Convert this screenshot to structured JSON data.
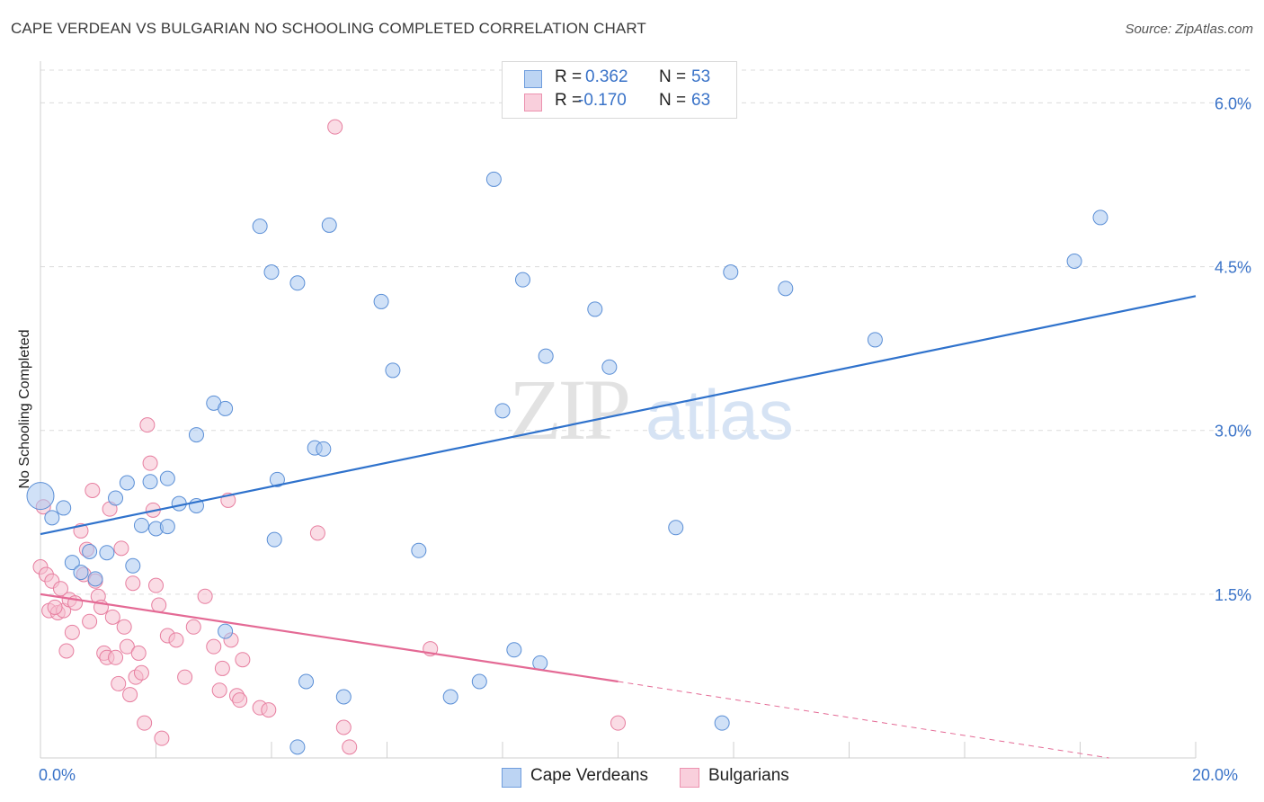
{
  "header": {
    "title": "CAPE VERDEAN VS BULGARIAN NO SCHOOLING COMPLETED CORRELATION CHART",
    "source": "Source: ZipAtlas.com"
  },
  "legend": {
    "rows": [
      {
        "r_label": "R =",
        "r_value": "0.362",
        "n_label": "N =",
        "n_value": "53"
      },
      {
        "r_label": "R =",
        "r_value": "-0.170",
        "n_label": "N =",
        "n_value": "63"
      }
    ]
  },
  "watermark": {
    "zip": "ZIP",
    "atlas": "atlas"
  },
  "chart_data": {
    "type": "scatter",
    "title": "CAPE VERDEAN VS BULGARIAN NO SCHOOLING COMPLETED CORRELATION CHART",
    "xlabel": "",
    "ylabel": "No Schooling Completed",
    "xlim": [
      0,
      20
    ],
    "ylim": [
      0,
      6.3
    ],
    "x_tick_labels": [
      "0.0%",
      "20.0%"
    ],
    "y_ticks": [
      1.5,
      3.0,
      4.5,
      6.0
    ],
    "y_tick_labels": [
      "1.5%",
      "3.0%",
      "4.5%",
      "6.0%"
    ],
    "grid": true,
    "legend_position": "top-center",
    "colors": {
      "cape_fill": "#aac8f0",
      "cape_stroke": "#5b8fd6",
      "cape_line": "#2f72cc",
      "bulg_fill": "#f6bfd0",
      "bulg_stroke": "#e77fa0",
      "bulg_line": "#e46a95",
      "tick": "#3a73c8",
      "grid": "#dcdcdc"
    },
    "series": [
      {
        "name": "Cape Verdeans",
        "trend": {
          "x0": 0,
          "y0": 2.05,
          "x1": 20,
          "y1": 4.23
        },
        "points": [
          [
            0.0,
            2.4
          ],
          [
            0.2,
            2.2
          ],
          [
            0.4,
            2.29
          ],
          [
            0.55,
            1.79
          ],
          [
            0.7,
            1.7
          ],
          [
            0.85,
            1.89
          ],
          [
            0.95,
            1.64
          ],
          [
            1.15,
            1.88
          ],
          [
            1.3,
            2.38
          ],
          [
            1.5,
            2.52
          ],
          [
            1.6,
            1.76
          ],
          [
            1.75,
            2.13
          ],
          [
            1.9,
            2.53
          ],
          [
            2.0,
            2.1
          ],
          [
            2.2,
            2.12
          ],
          [
            2.2,
            2.56
          ],
          [
            2.4,
            2.33
          ],
          [
            2.7,
            2.31
          ],
          [
            2.7,
            2.96
          ],
          [
            3.0,
            3.25
          ],
          [
            3.2,
            3.2
          ],
          [
            3.2,
            1.16
          ],
          [
            3.8,
            4.87
          ],
          [
            4.0,
            4.45
          ],
          [
            4.05,
            2.0
          ],
          [
            4.1,
            2.55
          ],
          [
            4.45,
            4.35
          ],
          [
            4.45,
            0.1
          ],
          [
            4.6,
            0.7
          ],
          [
            4.75,
            2.84
          ],
          [
            4.9,
            2.83
          ],
          [
            5.0,
            4.88
          ],
          [
            5.25,
            0.56
          ],
          [
            5.9,
            4.18
          ],
          [
            6.1,
            3.55
          ],
          [
            6.55,
            1.9
          ],
          [
            7.1,
            0.56
          ],
          [
            7.6,
            0.7
          ],
          [
            7.85,
            5.3
          ],
          [
            8.0,
            3.18
          ],
          [
            8.2,
            0.99
          ],
          [
            8.35,
            4.38
          ],
          [
            8.65,
            0.87
          ],
          [
            8.75,
            3.68
          ],
          [
            9.6,
            4.11
          ],
          [
            9.85,
            3.58
          ],
          [
            11.0,
            2.11
          ],
          [
            11.8,
            0.32
          ],
          [
            11.95,
            4.45
          ],
          [
            12.9,
            4.3
          ],
          [
            14.45,
            3.83
          ],
          [
            17.9,
            4.55
          ],
          [
            18.35,
            4.95
          ]
        ]
      },
      {
        "name": "Bulgarians",
        "trend": {
          "x0": 0,
          "y0": 1.5,
          "x1": 10,
          "y1": 0.7,
          "dash_x1": 18.5,
          "dash_y1": 0.0
        },
        "points": [
          [
            0.0,
            1.75
          ],
          [
            0.05,
            2.3
          ],
          [
            0.1,
            1.68
          ],
          [
            0.15,
            1.35
          ],
          [
            0.2,
            1.62
          ],
          [
            0.3,
            1.33
          ],
          [
            0.35,
            1.55
          ],
          [
            0.4,
            1.35
          ],
          [
            0.45,
            0.98
          ],
          [
            0.5,
            1.45
          ],
          [
            0.55,
            1.15
          ],
          [
            0.6,
            1.42
          ],
          [
            0.7,
            2.08
          ],
          [
            0.75,
            1.68
          ],
          [
            0.8,
            1.91
          ],
          [
            0.85,
            1.25
          ],
          [
            0.9,
            2.45
          ],
          [
            0.95,
            1.62
          ],
          [
            1.0,
            1.48
          ],
          [
            1.05,
            1.38
          ],
          [
            1.1,
            0.96
          ],
          [
            1.15,
            0.92
          ],
          [
            1.2,
            2.28
          ],
          [
            1.25,
            1.29
          ],
          [
            1.3,
            0.92
          ],
          [
            1.35,
            0.68
          ],
          [
            1.4,
            1.92
          ],
          [
            1.45,
            1.2
          ],
          [
            1.5,
            1.02
          ],
          [
            1.55,
            0.58
          ],
          [
            1.6,
            1.6
          ],
          [
            1.65,
            0.74
          ],
          [
            1.7,
            0.96
          ],
          [
            1.75,
            0.78
          ],
          [
            1.8,
            0.32
          ],
          [
            1.85,
            3.05
          ],
          [
            1.9,
            2.7
          ],
          [
            1.95,
            2.27
          ],
          [
            2.0,
            1.58
          ],
          [
            2.05,
            1.4
          ],
          [
            2.1,
            0.18
          ],
          [
            2.2,
            1.12
          ],
          [
            2.35,
            1.08
          ],
          [
            2.5,
            0.74
          ],
          [
            2.65,
            1.2
          ],
          [
            2.85,
            1.48
          ],
          [
            3.0,
            1.02
          ],
          [
            3.1,
            0.62
          ],
          [
            3.15,
            0.82
          ],
          [
            3.25,
            2.36
          ],
          [
            3.3,
            1.08
          ],
          [
            3.4,
            0.57
          ],
          [
            3.45,
            0.53
          ],
          [
            3.5,
            0.9
          ],
          [
            3.8,
            0.46
          ],
          [
            3.95,
            0.44
          ],
          [
            4.8,
            2.06
          ],
          [
            5.1,
            5.78
          ],
          [
            5.25,
            0.28
          ],
          [
            5.35,
            0.1
          ],
          [
            6.75,
            1.0
          ],
          [
            10.0,
            0.32
          ],
          [
            0.25,
            1.38
          ]
        ]
      }
    ]
  }
}
